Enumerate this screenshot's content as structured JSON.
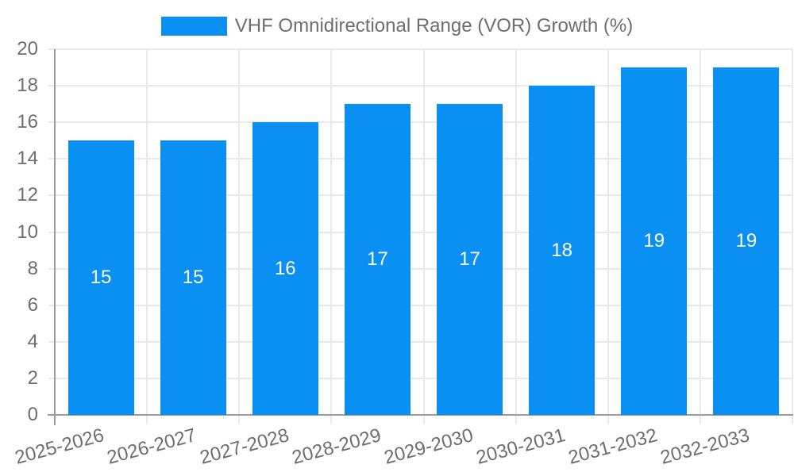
{
  "chart_data": {
    "type": "bar",
    "title": "VHF Omnidirectional Range (VOR) Growth (%)",
    "legend": [
      "VHF Omnidirectional Range (VOR) Growth (%)"
    ],
    "legend_position": "top",
    "categories": [
      "2025-2026",
      "2026-2027",
      "2027-2028",
      "2028-2029",
      "2029-2030",
      "2030-2031",
      "2031-2032",
      "2032-2033"
    ],
    "values": [
      15,
      15,
      16,
      17,
      17,
      18,
      19,
      19
    ],
    "data_labels": [
      "15",
      "15",
      "16",
      "17",
      "17",
      "18",
      "19",
      "19"
    ],
    "xlabel": "",
    "ylabel": "",
    "ylim": [
      0,
      20
    ],
    "yticks": [
      0,
      2,
      4,
      6,
      8,
      10,
      12,
      14,
      16,
      18,
      20
    ],
    "grid": true,
    "colors": {
      "bar": "#0a90f2",
      "bar_label_text": "#ffffff",
      "axis_line": "#9c9c9c",
      "grid_line": "#e9e9e9",
      "tick_text": "#6e6e6e",
      "background": "#ffffff"
    }
  }
}
